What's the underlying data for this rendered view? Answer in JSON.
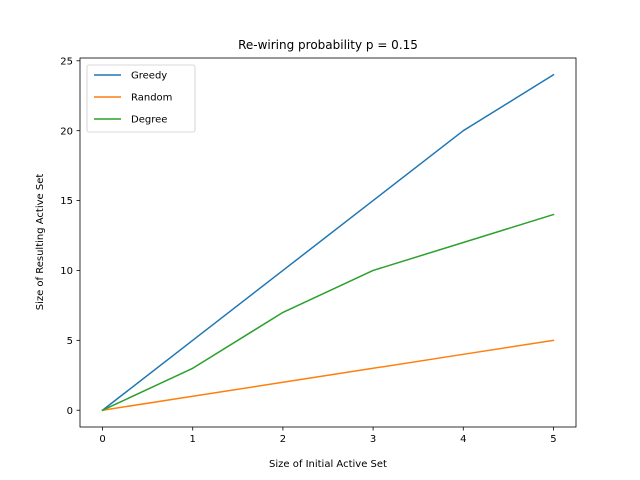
{
  "chart_data": {
    "type": "line",
    "title": "Re-wiring probability p = 0.15",
    "xlabel": "Size of Initial Active Set",
    "ylabel": "Size of Resulting Active Set",
    "x": [
      0,
      1,
      2,
      3,
      4,
      5
    ],
    "xlim": [
      -0.25,
      5.25
    ],
    "ylim": [
      -1.2,
      25.2
    ],
    "xticks": [
      0,
      1,
      2,
      3,
      4,
      5
    ],
    "yticks": [
      0,
      5,
      10,
      15,
      20,
      25
    ],
    "grid": false,
    "legend_position": "top-left",
    "series": [
      {
        "name": "Greedy",
        "color": "#1f77b4",
        "values": [
          0,
          5,
          10,
          15,
          20,
          24
        ]
      },
      {
        "name": "Random",
        "color": "#ff7f0e",
        "values": [
          0,
          1,
          2,
          3,
          4,
          5
        ]
      },
      {
        "name": "Degree",
        "color": "#2ca02c",
        "values": [
          0,
          3,
          7,
          10,
          12,
          14
        ]
      }
    ]
  }
}
